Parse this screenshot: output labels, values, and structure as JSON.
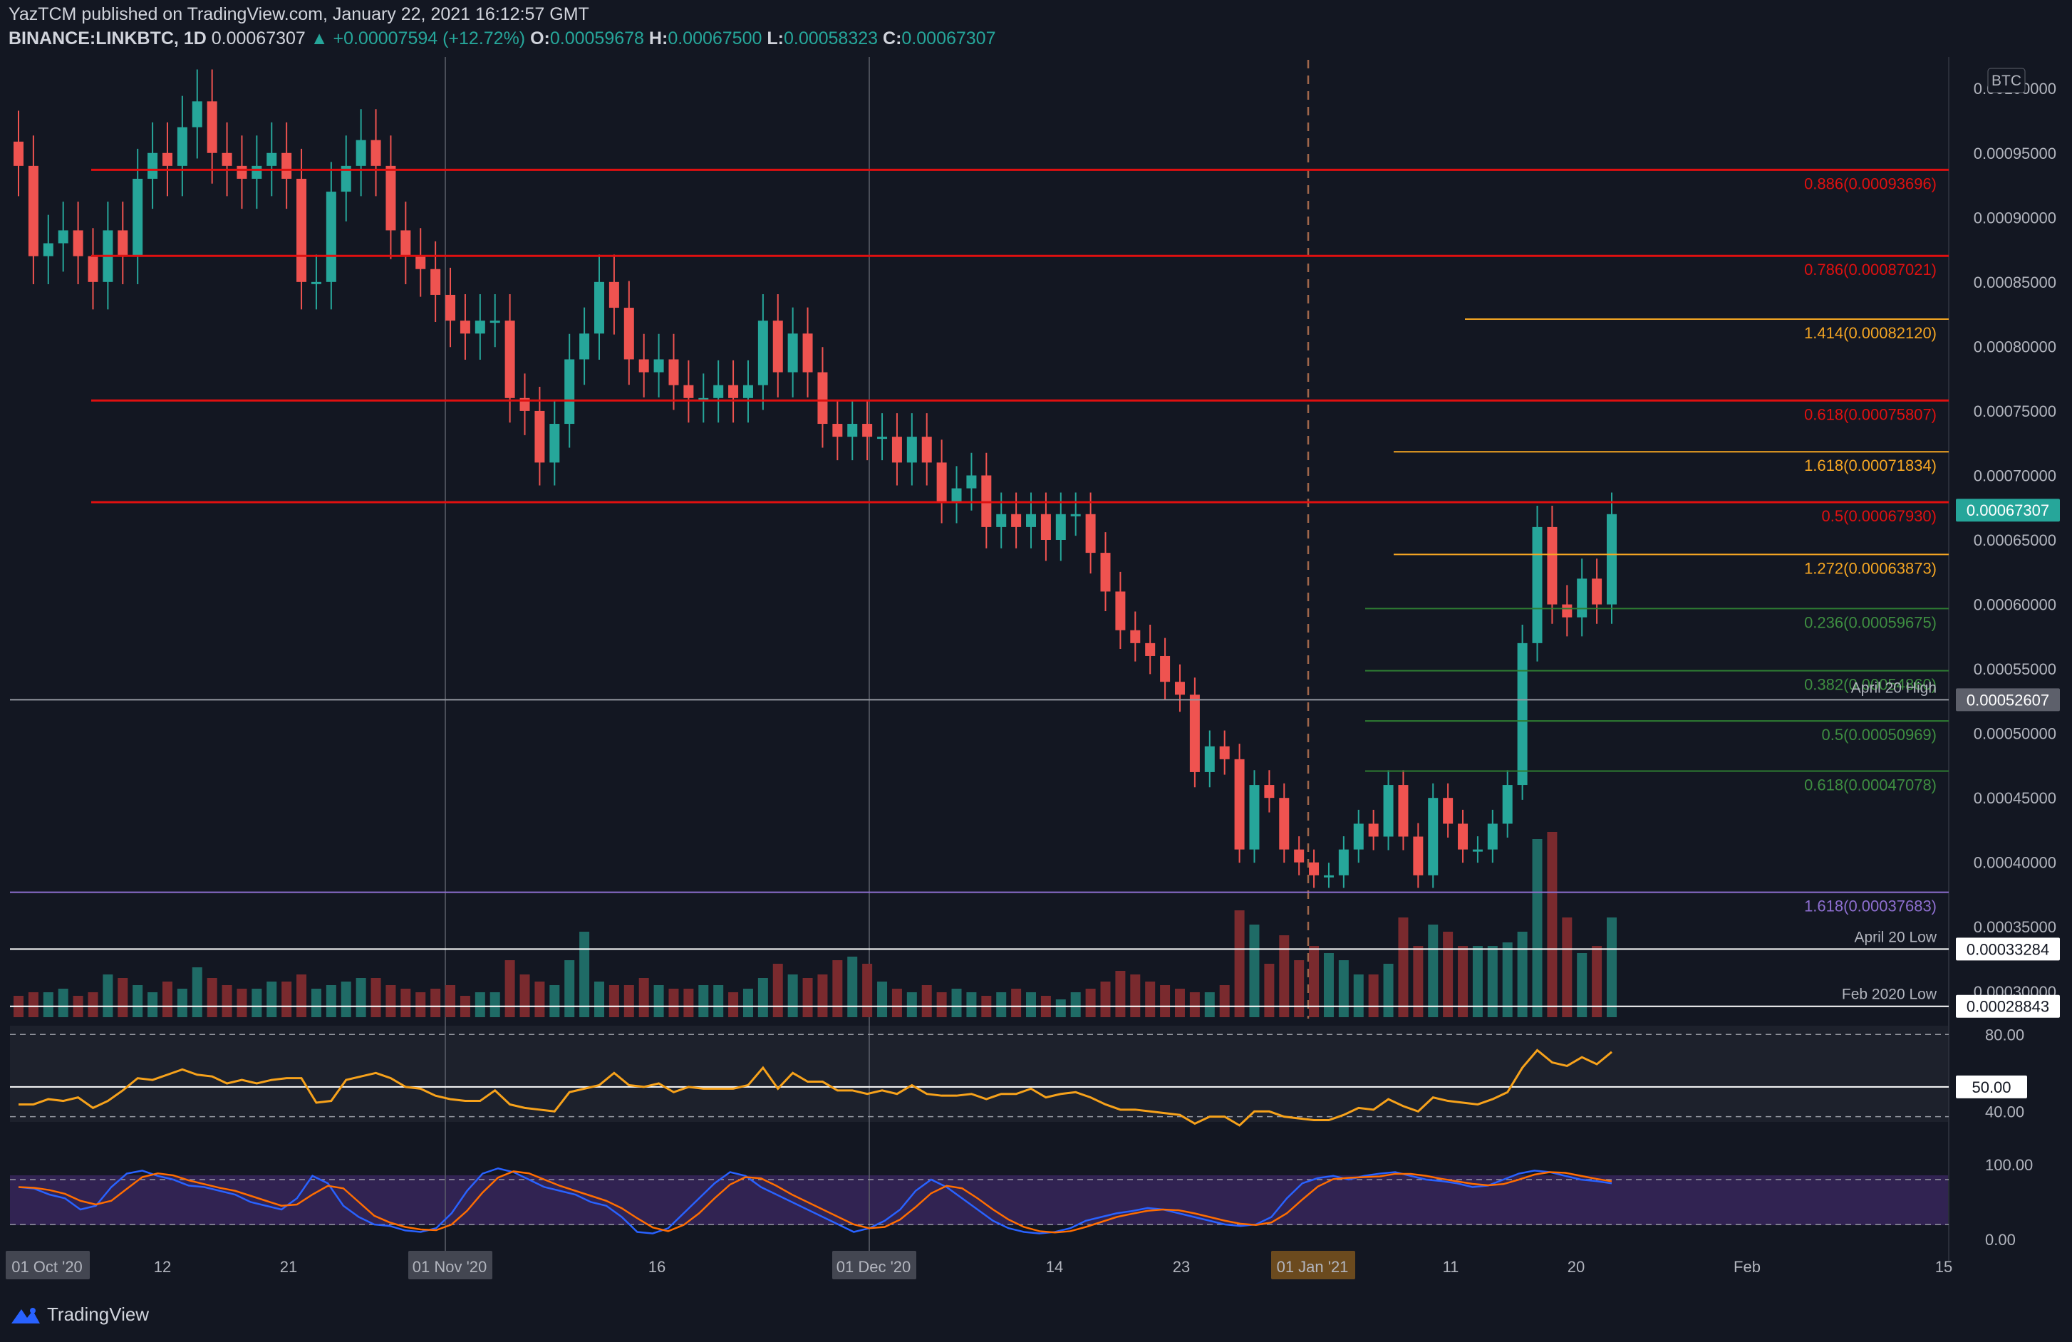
{
  "header": {
    "published": "YazTCM published on TradingView.com, January 22, 2021 16:12:57 GMT",
    "symbol": "BINANCE:LINKBTC, 1D",
    "last": "0.00067307",
    "change": "▲ +0.00007594 (+12.72%)",
    "o_label": "O:",
    "o": "0.00059678",
    "h_label": "H:",
    "h": "0.00067500",
    "l_label": "L:",
    "l": "0.00058323",
    "c_label": "C:",
    "c": "0.00067307"
  },
  "branding": "TradingView",
  "colors": {
    "up": "#26a69a",
    "down": "#ef5350",
    "up_vol": "#1f6b66",
    "down_vol": "#7a2a2e",
    "fib_red": "#e01010",
    "fib_orange": "#f5a623",
    "fib_green": "#2e7d32",
    "purple": "#8e6fd1",
    "rsi": "#f7a21b"
  },
  "chart_data": [
    {
      "type": "candlestick",
      "y_unit": "BTC",
      "ylim": [
        0.00028,
        0.00102
      ],
      "y_ticks": [
        "0.00030000",
        "0.00035000",
        "0.00040000",
        "0.00045000",
        "0.00050000",
        "0.00055000",
        "0.00060000",
        "0.00065000",
        "0.00070000",
        "0.00075000",
        "0.00080000",
        "0.00085000",
        "0.00090000",
        "0.00095000",
        "0.00100000"
      ],
      "x_ticks": [
        "01 Oct '20",
        "12",
        "21",
        "01 Nov '20",
        "16",
        "01 Dec '20",
        "14",
        "23",
        "01 Jan '21",
        "11",
        "20",
        "Feb",
        "15"
      ],
      "last_price_label": "0.00067307",
      "closes_approx": [
        0.00094,
        0.00087,
        0.00088,
        0.00089,
        0.00087,
        0.00085,
        0.00089,
        0.00087,
        0.00093,
        0.00095,
        0.00094,
        0.00097,
        0.00099,
        0.00095,
        0.00094,
        0.00093,
        0.00094,
        0.00095,
        0.00093,
        0.00085,
        0.00085,
        0.00092,
        0.00094,
        0.00096,
        0.00094,
        0.00089,
        0.00087,
        0.00086,
        0.00084,
        0.00082,
        0.00081,
        0.00082,
        0.00082,
        0.00076,
        0.00075,
        0.00071,
        0.00074,
        0.00079,
        0.00081,
        0.00085,
        0.00083,
        0.00079,
        0.00078,
        0.00079,
        0.00077,
        0.00076,
        0.00076,
        0.00077,
        0.00076,
        0.00077,
        0.00082,
        0.00078,
        0.00081,
        0.00078,
        0.00074,
        0.00073,
        0.00074,
        0.00073,
        0.00073,
        0.00071,
        0.00073,
        0.00071,
        0.00068,
        0.00069,
        0.0007,
        0.00066,
        0.00067,
        0.00066,
        0.00067,
        0.00065,
        0.00067,
        0.00067,
        0.00064,
        0.00061,
        0.00058,
        0.00057,
        0.00056,
        0.00054,
        0.00053,
        0.00047,
        0.00049,
        0.00048,
        0.00041,
        0.00046,
        0.00045,
        0.00041,
        0.0004,
        0.00039,
        0.00039,
        0.00041,
        0.00043,
        0.00042,
        0.00046,
        0.00042,
        0.00039,
        0.00045,
        0.00043,
        0.00041,
        0.00041,
        0.00043,
        0.00046,
        0.00057,
        0.00066,
        0.0006,
        0.00059,
        0.00062,
        0.0006,
        0.00067
      ]
    },
    {
      "type": "horizontal_levels",
      "levels": [
        {
          "label": "0.886(0.00093696)",
          "value": 0.00093696,
          "color": "red"
        },
        {
          "label": "0.786(0.00087021)",
          "value": 0.00087021,
          "color": "red"
        },
        {
          "label": "1.414(0.00082120)",
          "value": 0.0008212,
          "color": "orange"
        },
        {
          "label": "0.618(0.00075807)",
          "value": 0.00075807,
          "color": "red"
        },
        {
          "label": "1.618(0.00071834)",
          "value": 0.00071834,
          "color": "orange"
        },
        {
          "label": "0.5(0.00067930)",
          "value": 0.0006793,
          "color": "red"
        },
        {
          "label": "1.272(0.00063873)",
          "value": 0.00063873,
          "color": "orange"
        },
        {
          "label": "0.236(0.00059675)",
          "value": 0.00059675,
          "color": "green"
        },
        {
          "label": "0.382(0.00054860)",
          "value": 0.0005486,
          "color": "green"
        },
        {
          "label": "0.5(0.00050969)",
          "value": 0.00050969,
          "color": "green"
        },
        {
          "label": "0.618(0.00047078)",
          "value": 0.00047078,
          "color": "green"
        },
        {
          "label": "1.618(0.00037683)",
          "value": 0.00037683,
          "color": "purple"
        }
      ],
      "price_tags": [
        {
          "text": "April 20 High",
          "value": 0.00052607,
          "tag": "0.00052607"
        },
        {
          "text": "April 20 Low",
          "value": 0.00033284,
          "tag": "0.00033284"
        },
        {
          "text": "Feb 2020 Low",
          "value": 0.00028843,
          "tag": "0.00028843"
        }
      ]
    },
    {
      "type": "line",
      "name": "RSI",
      "levels": [
        "80.00",
        "50.00",
        "40.00"
      ],
      "current_tag": "50.00",
      "values": [
        40,
        40,
        43,
        42,
        44,
        38,
        42,
        48,
        55,
        54,
        57,
        60,
        57,
        56,
        52,
        54,
        52,
        54,
        55,
        55,
        41,
        42,
        54,
        56,
        58,
        55,
        50,
        49,
        45,
        43,
        42,
        42,
        48,
        40,
        38,
        37,
        36,
        47,
        49,
        51,
        58,
        51,
        50,
        52,
        47,
        50,
        49,
        49,
        49,
        51,
        61,
        49,
        58,
        53,
        53,
        48,
        48,
        46,
        48,
        46,
        51,
        46,
        45,
        45,
        46,
        43,
        46,
        46,
        49,
        44,
        46,
        47,
        44,
        40,
        37,
        37,
        36,
        35,
        34,
        29,
        33,
        33,
        28,
        36,
        36,
        33,
        32,
        31,
        31,
        34,
        38,
        37,
        43,
        39,
        36,
        44,
        42,
        41,
        40,
        43,
        47,
        61,
        71,
        64,
        62,
        67,
        63,
        70
      ]
    },
    {
      "type": "line",
      "name": "Stoch RSI",
      "levels": [
        "100.00",
        "0.00"
      ],
      "k_values": [
        70,
        68,
        60,
        55,
        40,
        45,
        70,
        88,
        92,
        85,
        80,
        72,
        70,
        65,
        60,
        50,
        45,
        40,
        55,
        85,
        75,
        45,
        30,
        20,
        18,
        12,
        10,
        15,
        35,
        65,
        88,
        95,
        90,
        80,
        70,
        65,
        60,
        50,
        45,
        30,
        10,
        8,
        15,
        35,
        55,
        75,
        90,
        85,
        70,
        60,
        50,
        40,
        30,
        20,
        10,
        15,
        25,
        40,
        65,
        80,
        70,
        55,
        40,
        25,
        15,
        10,
        8,
        10,
        15,
        25,
        30,
        35,
        38,
        42,
        40,
        35,
        30,
        25,
        20,
        18,
        20,
        30,
        55,
        75,
        82,
        85,
        80,
        85,
        88,
        90,
        85,
        80,
        78,
        75,
        70,
        72,
        80,
        88,
        92,
        90,
        85,
        80,
        78,
        75
      ]
    }
  ]
}
